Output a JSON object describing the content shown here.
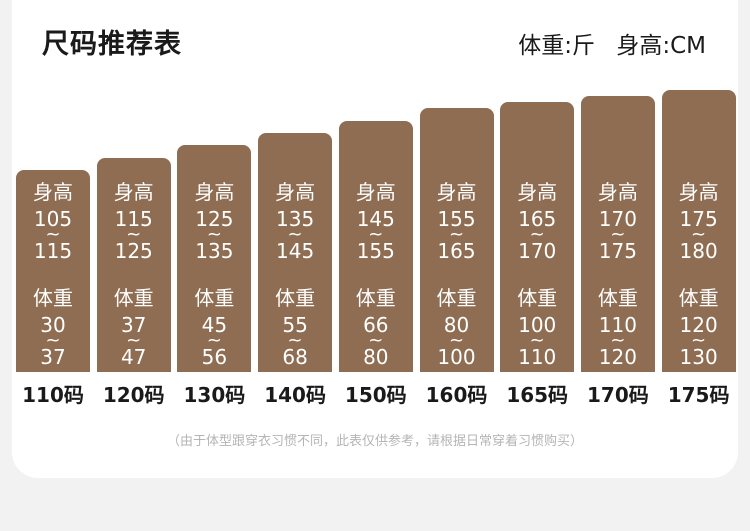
{
  "page": {
    "title": "尺码推荐表",
    "unit_weight": "体重:斤",
    "unit_height": "身高:CM",
    "note": "（由于体型跟穿衣习惯不同，此表仅供参考，请根据日常穿着习惯购买）"
  },
  "chart_data": {
    "type": "bar",
    "title": "尺码推荐表",
    "height_label": "身高",
    "weight_label": "体重",
    "categories": [
      "110码",
      "120码",
      "130码",
      "140码",
      "150码",
      "160码",
      "165码",
      "170码",
      "175码"
    ],
    "height": [
      [
        "105",
        "115"
      ],
      [
        "115",
        "125"
      ],
      [
        "125",
        "135"
      ],
      [
        "135",
        "145"
      ],
      [
        "145",
        "155"
      ],
      [
        "155",
        "165"
      ],
      [
        "165",
        "170"
      ],
      [
        "170",
        "175"
      ],
      [
        "175",
        "180"
      ]
    ],
    "weight": [
      [
        "30",
        "37"
      ],
      [
        "37",
        "47"
      ],
      [
        "45",
        "56"
      ],
      [
        "55",
        "68"
      ],
      [
        "66",
        "80"
      ],
      [
        "80",
        "100"
      ],
      [
        "100",
        "110"
      ],
      [
        "110",
        "120"
      ],
      [
        "120",
        "130"
      ]
    ],
    "bar_color": "#8e6d52"
  }
}
